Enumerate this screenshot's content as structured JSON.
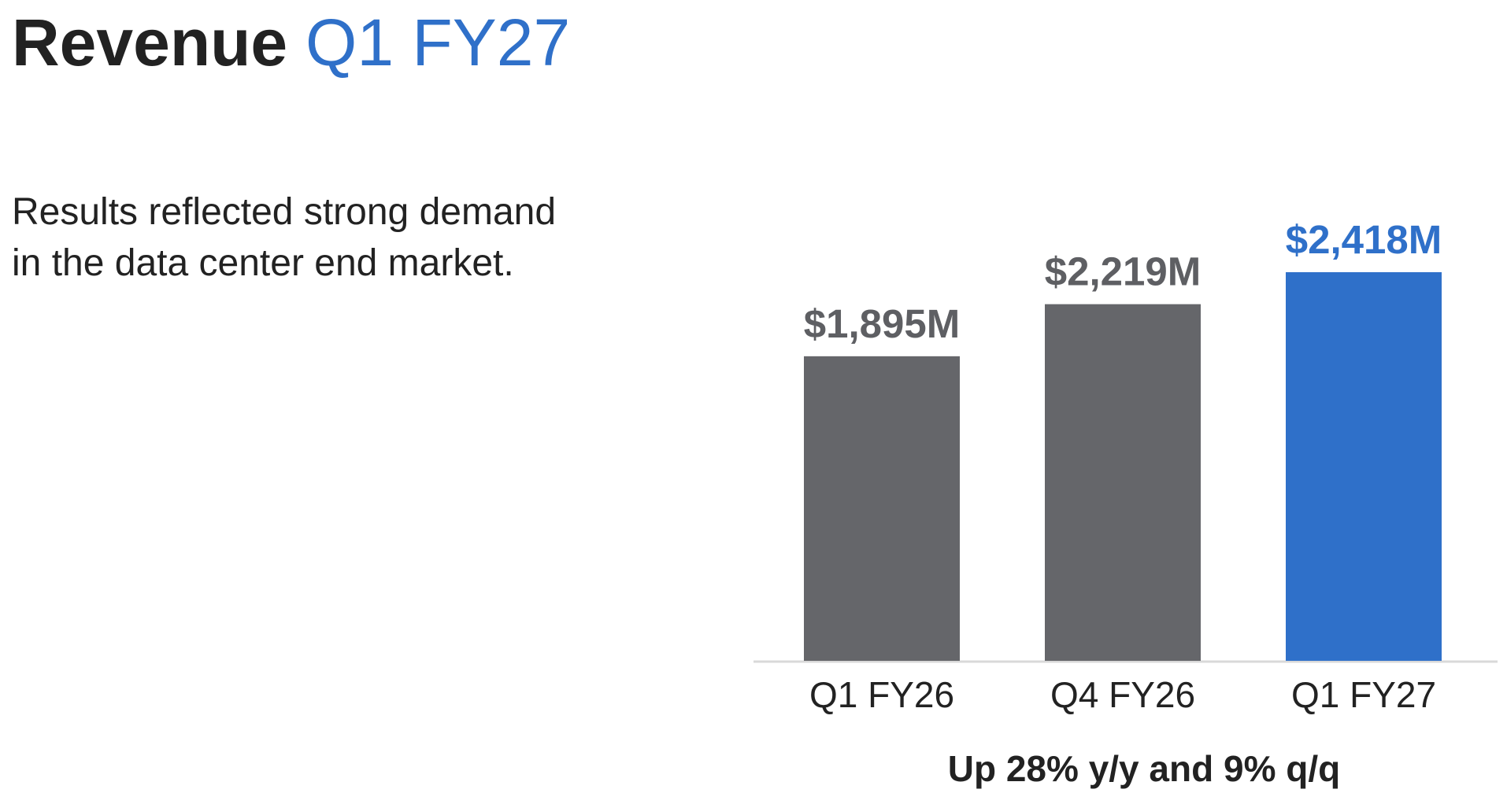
{
  "chart_data": {
    "type": "bar",
    "title": "Revenue",
    "title_period": "Q1 FY27",
    "description": [
      "Results reflected strong demand",
      "in the data center end market."
    ],
    "categories": [
      "Q1 FY26",
      "Q4 FY26",
      "Q1 FY27"
    ],
    "values": [
      1895,
      2219,
      2418
    ],
    "value_labels": [
      "$1,895M",
      "$2,219M",
      "$2,418M"
    ],
    "colors": [
      "#65666a",
      "#65666a",
      "#2f70c9"
    ],
    "label_colors": [
      "#5e5f63",
      "#5e5f63",
      "#2f70c9"
    ],
    "annotation": "Up 28% y/y and 9% q/q"
  }
}
